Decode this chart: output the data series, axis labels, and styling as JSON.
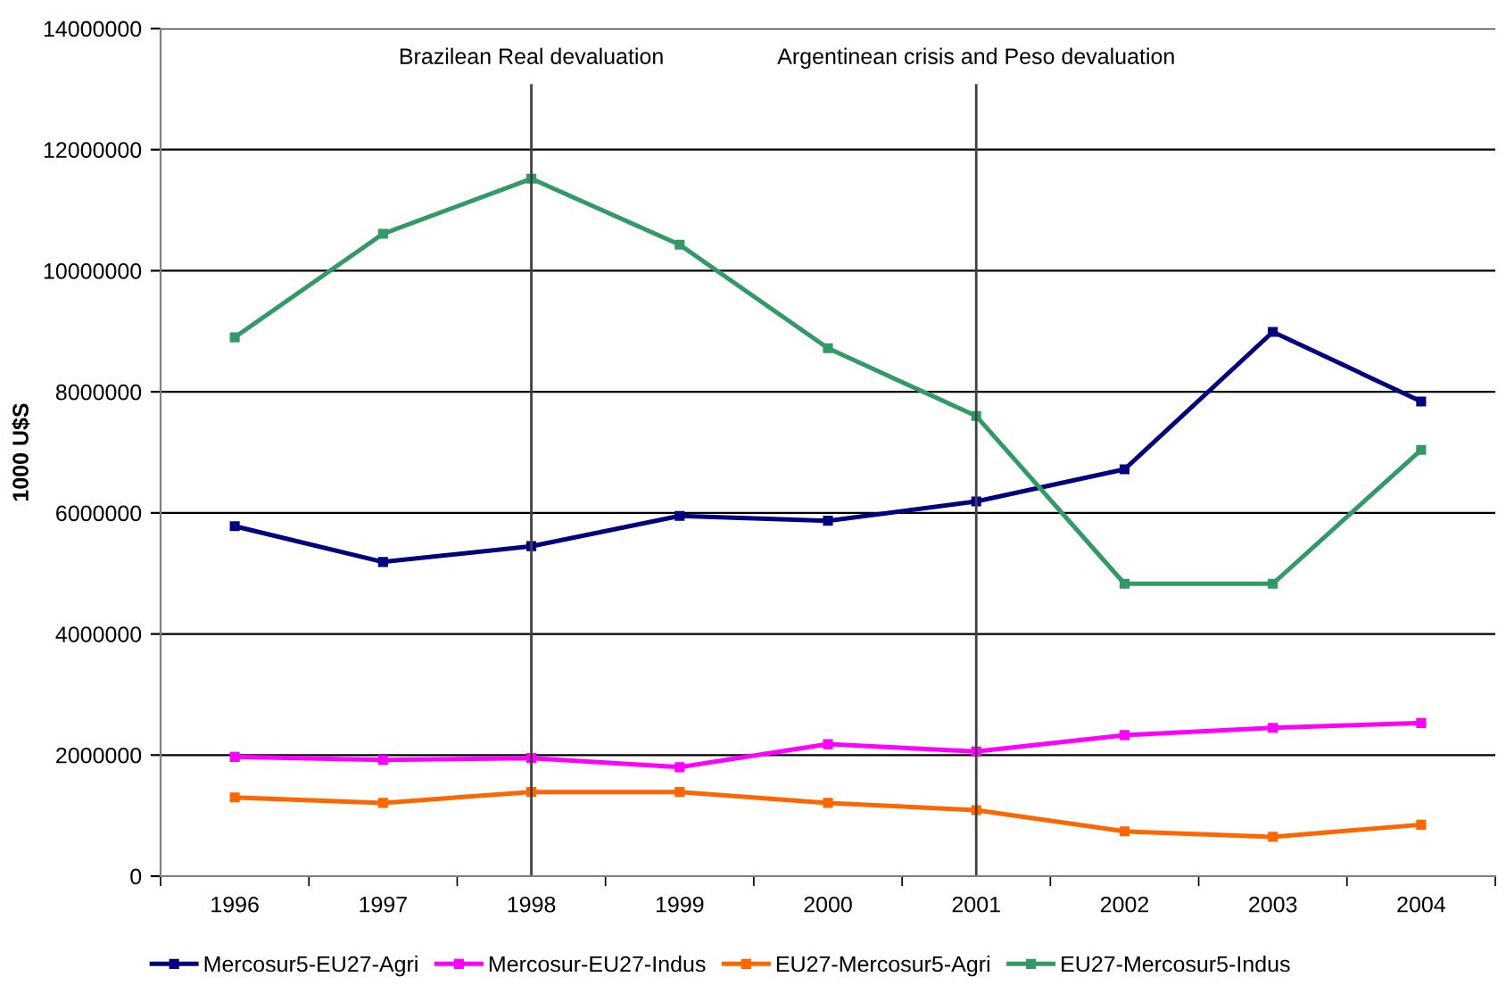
{
  "chart_data": {
    "type": "line",
    "ylabel": "1000 U$S",
    "categories": [
      "1996",
      "1997",
      "1998",
      "1999",
      "2000",
      "2001",
      "2002",
      "2003",
      "2004"
    ],
    "series": [
      {
        "name": "Mercosur5-EU27-Agri",
        "color": "#000080",
        "values": [
          5780000,
          5190000,
          5450000,
          5950000,
          5870000,
          6190000,
          6720000,
          8990000,
          7840000
        ]
      },
      {
        "name": "Mercosur-EU27-Indus",
        "color": "#ff00ff",
        "values": [
          1970000,
          1920000,
          1950000,
          1800000,
          2180000,
          2060000,
          2330000,
          2450000,
          2530000
        ]
      },
      {
        "name": "EU27-Mercosur5-Agri",
        "color": "#ff6600",
        "values": [
          1300000,
          1210000,
          1390000,
          1390000,
          1210000,
          1090000,
          740000,
          650000,
          850000
        ]
      },
      {
        "name": "EU27-Mercosur5-Indus",
        "color": "#339966",
        "values": [
          8900000,
          10610000,
          11520000,
          10430000,
          8720000,
          7600000,
          4830000,
          4830000,
          7040000
        ]
      }
    ],
    "ylim": [
      0,
      14000000
    ],
    "yticks": [
      0,
      2000000,
      4000000,
      6000000,
      8000000,
      10000000,
      12000000,
      14000000
    ],
    "ref_lines": [
      {
        "axis": "x",
        "value": "1998",
        "label": "Brazilean Real devaluation",
        "color": "#404040"
      },
      {
        "axis": "x",
        "value": "2001",
        "label": "Argentinean crisis and Peso devaluation",
        "color": "#404040"
      }
    ],
    "grid": "y",
    "legend": "bottom",
    "marker": "square",
    "line_style": "solid"
  }
}
